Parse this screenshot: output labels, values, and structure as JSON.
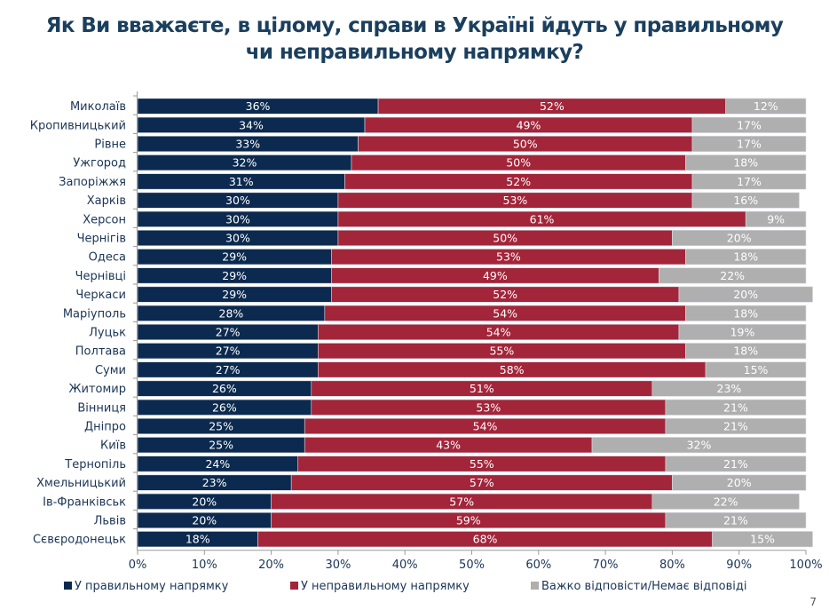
{
  "page_number": "7",
  "chart_data": {
    "type": "bar",
    "orientation": "horizontal",
    "stacked": true,
    "title": [
      "Як Ви вважаєте, в цілому, справи в Україні йдуть у правильному",
      "чи неправильному напрямку?"
    ],
    "categories": [
      "Миколаїв",
      "Кропивницький",
      "Рівне",
      "Ужгород",
      "Запоріжжя",
      "Харків",
      "Херсон",
      "Чернігів",
      "Одеса",
      "Чернівці",
      "Черкаси",
      "Маріуполь",
      "Луцьк",
      "Полтава",
      "Суми",
      "Житомир",
      "Вінниця",
      "Дніпро",
      "Київ",
      "Тернопіль",
      "Хмельницький",
      "Ів-Франківськ",
      "Львів",
      "Сєвєродонецьк"
    ],
    "series": [
      {
        "name": "У правильному напрямку",
        "color": "#0c2a4f",
        "values": [
          36,
          34,
          33,
          32,
          31,
          30,
          30,
          30,
          29,
          29,
          29,
          28,
          27,
          27,
          27,
          26,
          26,
          25,
          25,
          24,
          23,
          20,
          20,
          18
        ]
      },
      {
        "name": "У неправильному напрямку",
        "color": "#a3253a",
        "values": [
          52,
          49,
          50,
          50,
          52,
          53,
          61,
          50,
          53,
          49,
          52,
          54,
          54,
          55,
          58,
          51,
          53,
          54,
          43,
          55,
          57,
          57,
          59,
          68
        ]
      },
      {
        "name": "Важко відповісти/Немає відповіді",
        "color": "#afafaf",
        "values": [
          12,
          17,
          17,
          18,
          17,
          16,
          9,
          20,
          18,
          22,
          20,
          18,
          19,
          18,
          15,
          23,
          21,
          21,
          32,
          21,
          20,
          22,
          21,
          15
        ]
      }
    ],
    "value_suffix": "%",
    "xlim": [
      0,
      100
    ],
    "xticks": [
      "0%",
      "10%",
      "20%",
      "30%",
      "40%",
      "50%",
      "60%",
      "70%",
      "80%",
      "90%",
      "100%"
    ],
    "legend_position": "bottom",
    "grid": false
  }
}
